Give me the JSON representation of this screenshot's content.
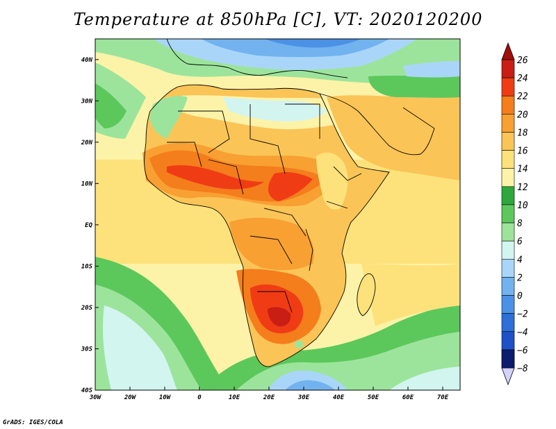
{
  "title": "Temperature at 850hPa [C], VT: 2020120200",
  "credit": "GrADS: IGES/COLA",
  "map": {
    "lon_range": [
      -30,
      75
    ],
    "lat_range": [
      -40,
      45
    ],
    "lon_ticks": [
      {
        "lon": -30,
        "label": "30W"
      },
      {
        "lon": -20,
        "label": "20W"
      },
      {
        "lon": -10,
        "label": "10W"
      },
      {
        "lon": 0,
        "label": "0"
      },
      {
        "lon": 10,
        "label": "10E"
      },
      {
        "lon": 20,
        "label": "20E"
      },
      {
        "lon": 30,
        "label": "30E"
      },
      {
        "lon": 40,
        "label": "40E"
      },
      {
        "lon": 50,
        "label": "50E"
      },
      {
        "lon": 60,
        "label": "60E"
      },
      {
        "lon": 70,
        "label": "70E"
      }
    ],
    "lat_ticks": [
      {
        "lat": 40,
        "label": "40N"
      },
      {
        "lat": 30,
        "label": "30N"
      },
      {
        "lat": 20,
        "label": "20N"
      },
      {
        "lat": 10,
        "label": "10N"
      },
      {
        "lat": 0,
        "label": "EQ"
      },
      {
        "lat": -10,
        "label": "10S"
      },
      {
        "lat": -20,
        "label": "20S"
      },
      {
        "lat": -30,
        "label": "30S"
      },
      {
        "lat": -40,
        "label": "40S"
      }
    ]
  },
  "colorbar": {
    "levels": [
      {
        "label": "26",
        "color": "#c81e14"
      },
      {
        "label": "24",
        "color": "#f03c14"
      },
      {
        "label": "22",
        "color": "#f47d1c"
      },
      {
        "label": "20",
        "color": "#f8a032"
      },
      {
        "label": "18",
        "color": "#fbc457"
      },
      {
        "label": "16",
        "color": "#fde27c"
      },
      {
        "label": "14",
        "color": "#fdf3a8"
      },
      {
        "label": "12",
        "color": "#2ea83c"
      },
      {
        "label": "10",
        "color": "#5cc85c"
      },
      {
        "label": "8",
        "color": "#9ce49c"
      },
      {
        "label": "6",
        "color": "#d2f5f0"
      },
      {
        "label": "4",
        "color": "#a9d6f8"
      },
      {
        "label": "2",
        "color": "#72b2ef"
      },
      {
        "label": "0",
        "color": "#4b91e6"
      },
      {
        "label": "−2",
        "color": "#2e6fd8"
      },
      {
        "label": "−4",
        "color": "#1e50c8"
      },
      {
        "label": "−6",
        "color": "#1232a0"
      },
      {
        "label": "−8",
        "color": "#0c1c6e"
      }
    ],
    "top_arrow_color": "#a00f0a",
    "bottom_arrow_color": "#d2d2fa"
  }
}
